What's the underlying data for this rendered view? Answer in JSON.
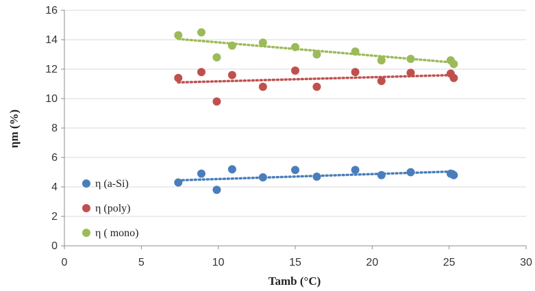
{
  "chart_data": {
    "type": "scatter",
    "xlabel": "Tamb (°C)",
    "ylabel": "ηm (%)",
    "xlim": [
      0,
      30
    ],
    "ylim": [
      0,
      16
    ],
    "xticks": [
      0,
      5,
      10,
      15,
      20,
      25,
      30
    ],
    "yticks": [
      0,
      2,
      4,
      6,
      8,
      10,
      12,
      14,
      16
    ],
    "grid": "horizontal",
    "legend_position": "bottom-left",
    "series": [
      {
        "name": "η (a-Si)",
        "color": "#4a7ebb",
        "points": [
          [
            7.4,
            4.3
          ],
          [
            8.9,
            4.9
          ],
          [
            9.9,
            3.8
          ],
          [
            10.9,
            5.2
          ],
          [
            12.9,
            4.65
          ],
          [
            15.0,
            5.15
          ],
          [
            16.4,
            4.7
          ],
          [
            18.9,
            5.15
          ],
          [
            20.6,
            4.8
          ],
          [
            22.5,
            5.0
          ],
          [
            25.1,
            4.9
          ],
          [
            25.3,
            4.8
          ]
        ],
        "trend": [
          [
            7.4,
            4.45
          ],
          [
            25.3,
            5.05
          ]
        ]
      },
      {
        "name": "η (poly)",
        "color": "#c0504d",
        "points": [
          [
            7.4,
            11.4
          ],
          [
            8.9,
            11.8
          ],
          [
            9.9,
            9.8
          ],
          [
            10.9,
            11.6
          ],
          [
            12.9,
            10.8
          ],
          [
            15.0,
            11.9
          ],
          [
            16.4,
            10.8
          ],
          [
            18.9,
            11.8
          ],
          [
            20.6,
            11.2
          ],
          [
            22.5,
            11.75
          ],
          [
            25.1,
            11.7
          ],
          [
            25.3,
            11.4
          ]
        ],
        "trend": [
          [
            7.4,
            11.1
          ],
          [
            25.3,
            11.6
          ]
        ]
      },
      {
        "name": "η ( mono)",
        "color": "#9bbb59",
        "points": [
          [
            7.4,
            14.3
          ],
          [
            8.9,
            14.5
          ],
          [
            9.9,
            12.8
          ],
          [
            10.9,
            13.6
          ],
          [
            12.9,
            13.8
          ],
          [
            15.0,
            13.5
          ],
          [
            16.4,
            13.0
          ],
          [
            18.9,
            13.2
          ],
          [
            20.6,
            12.6
          ],
          [
            22.5,
            12.7
          ],
          [
            25.1,
            12.6
          ],
          [
            25.3,
            12.35
          ]
        ],
        "trend": [
          [
            7.4,
            14.05
          ],
          [
            25.3,
            12.45
          ]
        ]
      }
    ]
  }
}
